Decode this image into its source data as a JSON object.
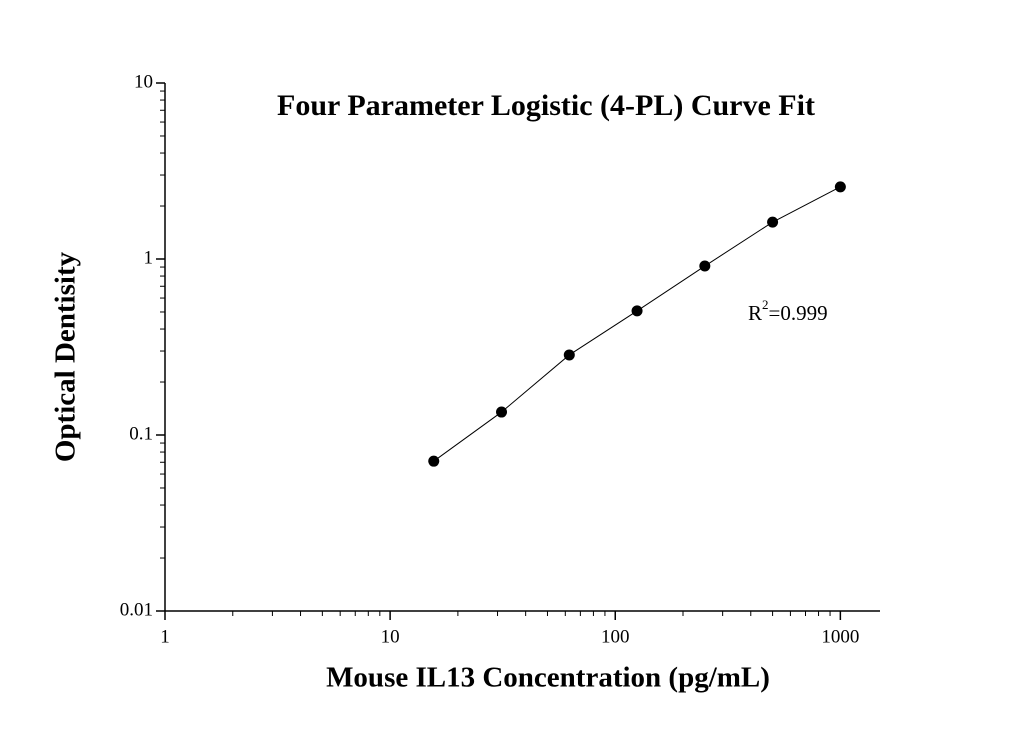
{
  "chart_data": {
    "type": "scatter",
    "title": "Four Parameter Logistic (4-PL) Curve Fit",
    "x_label": "Mouse IL13 Concentration (pg/mL)",
    "y_label": "Optical Dentisity",
    "annotation": [
      "R",
      "2",
      "=0.999"
    ],
    "x_scale": "log",
    "y_scale": "log",
    "xlim": [
      1,
      1500
    ],
    "ylim": [
      0.01,
      10
    ],
    "xticks": [
      1,
      10,
      100,
      1000
    ],
    "yticks": [
      0.01,
      0.1,
      1,
      10
    ],
    "series": [
      {
        "color": "#000000",
        "x": [
          15.625,
          31.25,
          62.5,
          125,
          250,
          500,
          1000
        ],
        "values": [
          0.071,
          0.135,
          0.285,
          0.507,
          0.912,
          1.62,
          2.57
        ]
      }
    ],
    "fit_line": true
  }
}
